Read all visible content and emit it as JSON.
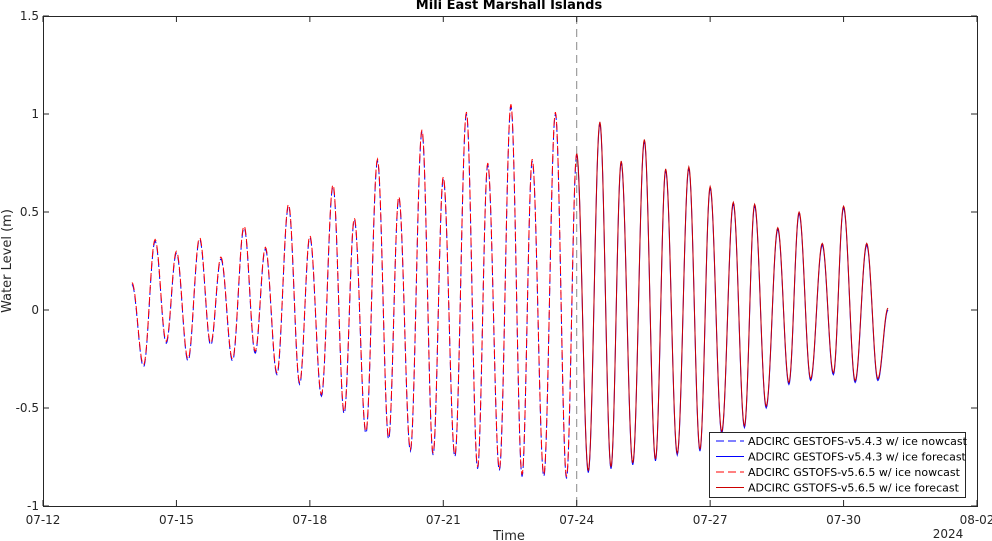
{
  "chart_data": {
    "type": "line",
    "title": "Mili East Marshall Islands",
    "xlabel": "Time",
    "ylabel": "Water Level (m)",
    "year_label": "2024",
    "x_ticks": [
      "07-12",
      "07-15",
      "07-18",
      "07-21",
      "07-24",
      "07-27",
      "07-30",
      "08-02"
    ],
    "y_ticks": [
      "1.5",
      "1",
      "0.5",
      "0",
      "-0.5",
      "-1"
    ],
    "xlim": [
      "2024-07-12",
      "2024-08-02"
    ],
    "ylim": [
      -1,
      1.5
    ],
    "grid": false,
    "legend_position": "bottom-right",
    "nowcast_forecast_boundary": "2024-07-24",
    "tide_extremes": {
      "times": [
        "2024-07-14 00:00",
        "2024-07-14 06:15",
        "2024-07-14 12:30",
        "2024-07-14 18:30",
        "2024-07-15 00:00",
        "2024-07-15 06:15",
        "2024-07-15 12:30",
        "2024-07-15 18:30",
        "2024-07-16 00:00",
        "2024-07-16 06:15",
        "2024-07-16 12:30",
        "2024-07-16 18:30",
        "2024-07-17 00:00",
        "2024-07-17 06:15",
        "2024-07-17 12:30",
        "2024-07-17 18:30",
        "2024-07-18 00:00",
        "2024-07-18 06:15",
        "2024-07-18 12:30",
        "2024-07-18 18:30",
        "2024-07-19 00:00",
        "2024-07-19 06:15",
        "2024-07-19 12:30",
        "2024-07-19 18:30",
        "2024-07-20 00:00",
        "2024-07-20 06:15",
        "2024-07-20 12:30",
        "2024-07-20 18:30",
        "2024-07-21 00:00",
        "2024-07-21 06:15",
        "2024-07-21 12:30",
        "2024-07-21 18:30",
        "2024-07-22 00:00",
        "2024-07-22 06:15",
        "2024-07-22 12:30",
        "2024-07-22 18:30",
        "2024-07-23 00:00",
        "2024-07-23 06:15",
        "2024-07-23 12:30",
        "2024-07-23 18:30",
        "2024-07-24 00:00",
        "2024-07-24 06:15",
        "2024-07-24 12:30",
        "2024-07-24 18:30",
        "2024-07-25 00:00",
        "2024-07-25 06:15",
        "2024-07-25 12:30",
        "2024-07-25 18:30",
        "2024-07-26 00:00",
        "2024-07-26 06:15",
        "2024-07-26 12:30",
        "2024-07-26 18:30",
        "2024-07-27 00:00",
        "2024-07-27 06:15",
        "2024-07-27 12:30",
        "2024-07-27 18:30",
        "2024-07-28 00:00",
        "2024-07-28 06:15",
        "2024-07-28 12:30",
        "2024-07-28 18:30",
        "2024-07-29 00:00",
        "2024-07-29 06:15",
        "2024-07-29 12:30",
        "2024-07-29 18:30",
        "2024-07-30 00:00",
        "2024-07-30 06:15",
        "2024-07-30 12:30",
        "2024-07-30 18:30",
        "2024-07-31 00:00"
      ],
      "levels": [
        0.13,
        -0.29,
        0.35,
        -0.17,
        0.29,
        -0.26,
        0.36,
        -0.18,
        0.26,
        -0.26,
        0.42,
        -0.22,
        0.31,
        -0.33,
        0.53,
        -0.38,
        0.37,
        -0.44,
        0.63,
        -0.53,
        0.46,
        -0.63,
        0.76,
        -0.66,
        0.57,
        -0.72,
        0.91,
        -0.74,
        0.67,
        -0.75,
        1.0,
        -0.81,
        0.74,
        -0.82,
        1.04,
        -0.85,
        0.76,
        -0.85,
        1.0,
        -0.86,
        0.79,
        -0.83,
        0.95,
        -0.81,
        0.75,
        -0.79,
        0.86,
        -0.77,
        0.71,
        -0.74,
        0.72,
        -0.72,
        0.62,
        -0.63,
        0.54,
        -0.6,
        0.53,
        -0.5,
        0.41,
        -0.38,
        0.49,
        -0.36,
        0.33,
        -0.33,
        0.52,
        -0.37,
        0.33,
        -0.36,
        0.0
      ]
    },
    "series": [
      {
        "name": "ADCIRC GESTOFS-v5.4.3 w/ ice nowcast",
        "color": "#0000ff",
        "style": "dashed",
        "period": "nowcast",
        "offset": 0.0
      },
      {
        "name": "ADCIRC GESTOFS-v5.4.3 w/ ice forecast",
        "color": "#0000ff",
        "style": "solid",
        "period": "forecast",
        "offset": 0.0
      },
      {
        "name": "ADCIRC GSTOFS-v5.6.5 w/ ice nowcast",
        "color": "#ff0000",
        "style": "dashed",
        "period": "nowcast",
        "offset": 0.01
      },
      {
        "name": "ADCIRC GSTOFS-v5.6.5 w/ ice forecast",
        "color": "#cc0000",
        "style": "solid",
        "period": "forecast",
        "offset": 0.01
      }
    ]
  }
}
